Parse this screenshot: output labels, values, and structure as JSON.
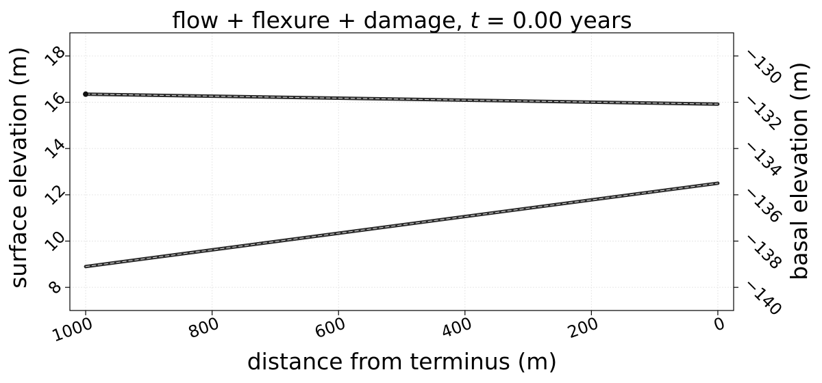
{
  "chart_data": {
    "type": "line",
    "title": "flow + flexure + damage, t = 0.00 years",
    "title_parts": {
      "prefix": "flow + flexure + damage, ",
      "italic_var": "t",
      "suffix": " = 0.00 years"
    },
    "xlabel": "distance from terminus (m)",
    "ylabel_left": "surface elevation (m)",
    "ylabel_right": "basal elevation (m)",
    "x_reversed": true,
    "xlim": [
      1025,
      -25
    ],
    "ylim_left": [
      7.0,
      19.0
    ],
    "ylim_right": [
      -141.0,
      -129.0
    ],
    "x_ticks": [
      1000,
      800,
      600,
      400,
      200,
      0
    ],
    "x_tick_labels": [
      "1000",
      "800",
      "600",
      "400",
      "200",
      "0"
    ],
    "y_left_ticks": [
      8,
      10,
      12,
      14,
      16,
      18
    ],
    "y_left_tick_labels": [
      "8",
      "10",
      "12",
      "14",
      "16",
      "18"
    ],
    "y_right_ticks": [
      -140,
      -138,
      -136,
      -134,
      -132,
      -130
    ],
    "y_right_tick_labels": [
      "−140",
      "−138",
      "−136",
      "−134",
      "−132",
      "−130"
    ],
    "grid": true,
    "series": [
      {
        "axis": "left",
        "x": [
          1000,
          0
        ],
        "y": [
          16.35,
          15.92
        ],
        "marker_at_start": true
      },
      {
        "axis": "right",
        "x": [
          1000,
          0
        ],
        "y": [
          -139.1,
          -135.5
        ],
        "marker_at_start": false
      }
    ],
    "colors": {
      "line": "#2b2b2b",
      "line_highlight": "#cfcfcf",
      "grid": "#e6e6e6",
      "frame": "#000000"
    }
  }
}
